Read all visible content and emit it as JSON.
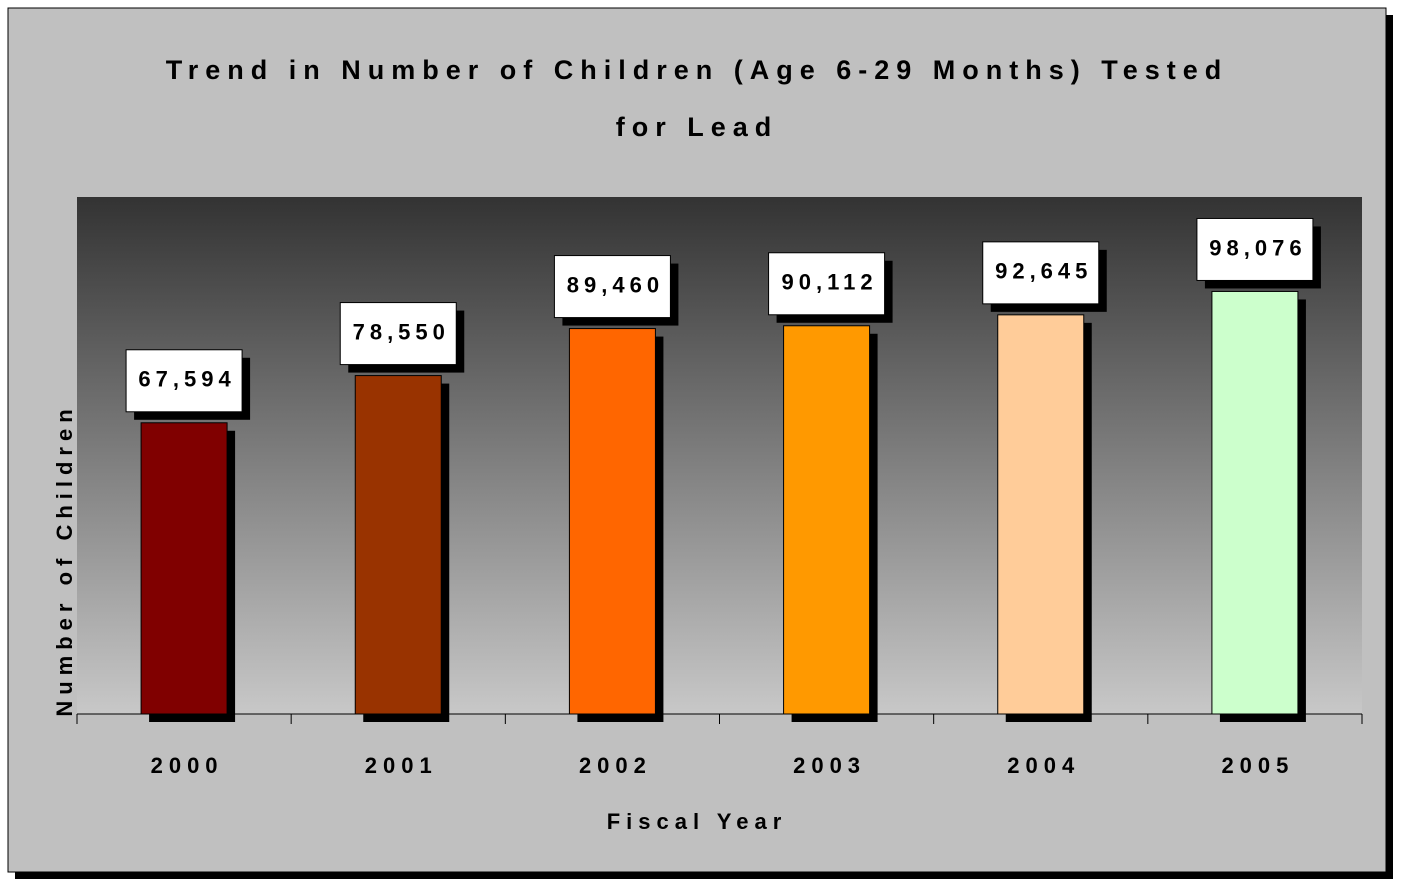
{
  "chart_data": {
    "type": "bar",
    "title": "Trend in Number of Children (Age 6-29 Months) Tested for Lead",
    "x_label": "Fiscal Year",
    "y_label": "Number of Children",
    "categories": [
      "2000",
      "2001",
      "2002",
      "2003",
      "2004",
      "2005"
    ],
    "values": [
      67594,
      78550,
      89460,
      90112,
      92645,
      98076
    ],
    "value_labels": [
      "67,594",
      "78,550",
      "89,460",
      "90,112",
      "92,645",
      "98,076"
    ],
    "colors": [
      "#800000",
      "#993300",
      "#ff6600",
      "#ff9900",
      "#ffcc99",
      "#ccffcc"
    ],
    "ylim": [
      0,
      120000
    ]
  }
}
